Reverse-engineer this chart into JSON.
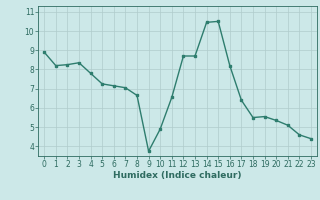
{
  "x": [
    0,
    1,
    2,
    3,
    4,
    5,
    6,
    7,
    8,
    9,
    10,
    11,
    12,
    13,
    14,
    15,
    16,
    17,
    18,
    19,
    20,
    21,
    22,
    23
  ],
  "y": [
    8.9,
    8.2,
    8.25,
    8.35,
    7.8,
    7.25,
    7.15,
    7.05,
    6.65,
    3.75,
    4.9,
    6.55,
    8.7,
    8.7,
    10.45,
    10.5,
    8.2,
    6.4,
    5.5,
    5.55,
    5.35,
    5.1,
    4.6,
    4.4
  ],
  "line_color": "#2e7d6e",
  "marker": "s",
  "markersize": 1.8,
  "linewidth": 1.0,
  "xlabel": "Humidex (Indice chaleur)",
  "xlim": [
    -0.5,
    23.5
  ],
  "ylim": [
    3.5,
    11.3
  ],
  "yticks": [
    4,
    5,
    6,
    7,
    8,
    9,
    10,
    11
  ],
  "xticks": [
    0,
    1,
    2,
    3,
    4,
    5,
    6,
    7,
    8,
    9,
    10,
    11,
    12,
    13,
    14,
    15,
    16,
    17,
    18,
    19,
    20,
    21,
    22,
    23
  ],
  "bg_color": "#cce8e8",
  "grid_color": "#b0cccc",
  "tick_color": "#2e6b60",
  "label_color": "#2e6b60",
  "xlabel_fontsize": 6.5,
  "tick_fontsize": 5.5
}
